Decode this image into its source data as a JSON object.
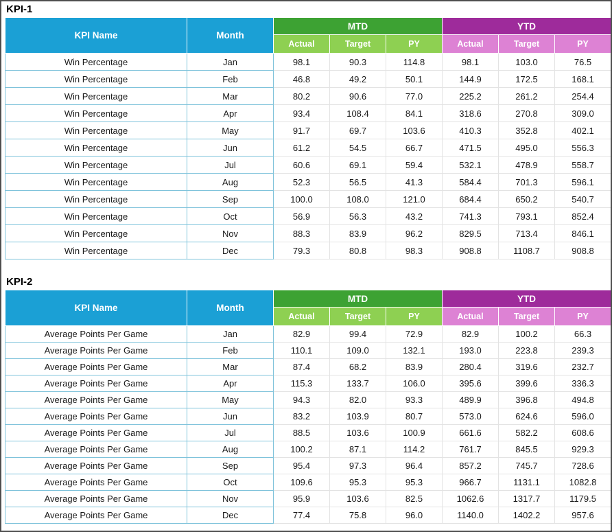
{
  "colors": {
    "header_cyan": "#1ba0d5",
    "mtd_dark_green": "#3da233",
    "mtd_light_green": "#8ed052",
    "ytd_dark_magenta": "#9e2b9b",
    "ytd_light_magenta": "#dd82d4",
    "name_month_cell_border": "#7fc3db",
    "value_cell_border": "#e3e3e3",
    "frame_border": "#4e4e4e"
  },
  "chart_data": [
    {
      "type": "table",
      "title": "KPI-1",
      "kpi_name": "Win Percentage",
      "header": {
        "kpi_name": "KPI Name",
        "month": "Month",
        "groups": [
          {
            "label": "MTD",
            "subs": [
              "Actual",
              "Target",
              "PY"
            ]
          },
          {
            "label": "YTD",
            "subs": [
              "Actual",
              "Target",
              "PY"
            ]
          }
        ]
      },
      "rows": [
        {
          "month": "Jan",
          "values": [
            "98.1",
            "90.3",
            "114.8",
            "98.1",
            "103.0",
            "76.5"
          ]
        },
        {
          "month": "Feb",
          "values": [
            "46.8",
            "49.2",
            "50.1",
            "144.9",
            "172.5",
            "168.1"
          ]
        },
        {
          "month": "Mar",
          "values": [
            "80.2",
            "90.6",
            "77.0",
            "225.2",
            "261.2",
            "254.4"
          ]
        },
        {
          "month": "Apr",
          "values": [
            "93.4",
            "108.4",
            "84.1",
            "318.6",
            "270.8",
            "309.0"
          ]
        },
        {
          "month": "May",
          "values": [
            "91.7",
            "69.7",
            "103.6",
            "410.3",
            "352.8",
            "402.1"
          ]
        },
        {
          "month": "Jun",
          "values": [
            "61.2",
            "54.5",
            "66.7",
            "471.5",
            "495.0",
            "556.3"
          ]
        },
        {
          "month": "Jul",
          "values": [
            "60.6",
            "69.1",
            "59.4",
            "532.1",
            "478.9",
            "558.7"
          ]
        },
        {
          "month": "Aug",
          "values": [
            "52.3",
            "56.5",
            "41.3",
            "584.4",
            "701.3",
            "596.1"
          ]
        },
        {
          "month": "Sep",
          "values": [
            "100.0",
            "108.0",
            "121.0",
            "684.4",
            "650.2",
            "540.7"
          ]
        },
        {
          "month": "Oct",
          "values": [
            "56.9",
            "56.3",
            "43.2",
            "741.3",
            "793.1",
            "852.4"
          ]
        },
        {
          "month": "Nov",
          "values": [
            "88.3",
            "83.9",
            "96.2",
            "829.5",
            "713.4",
            "846.1"
          ]
        },
        {
          "month": "Dec",
          "values": [
            "79.3",
            "80.8",
            "98.3",
            "908.8",
            "1108.7",
            "908.8"
          ]
        }
      ]
    },
    {
      "type": "table",
      "title": "KPI-2",
      "kpi_name": "Average Points Per Game",
      "header": {
        "kpi_name": "KPI Name",
        "month": "Month",
        "groups": [
          {
            "label": "MTD",
            "subs": [
              "Actual",
              "Target",
              "PY"
            ]
          },
          {
            "label": "YTD",
            "subs": [
              "Actual",
              "Target",
              "PY"
            ]
          }
        ]
      },
      "rows": [
        {
          "month": "Jan",
          "values": [
            "82.9",
            "99.4",
            "72.9",
            "82.9",
            "100.2",
            "66.3"
          ]
        },
        {
          "month": "Feb",
          "values": [
            "110.1",
            "109.0",
            "132.1",
            "193.0",
            "223.8",
            "239.3"
          ]
        },
        {
          "month": "Mar",
          "values": [
            "87.4",
            "68.2",
            "83.9",
            "280.4",
            "319.6",
            "232.7"
          ]
        },
        {
          "month": "Apr",
          "values": [
            "115.3",
            "133.7",
            "106.0",
            "395.6",
            "399.6",
            "336.3"
          ]
        },
        {
          "month": "May",
          "values": [
            "94.3",
            "82.0",
            "93.3",
            "489.9",
            "396.8",
            "494.8"
          ]
        },
        {
          "month": "Jun",
          "values": [
            "83.2",
            "103.9",
            "80.7",
            "573.0",
            "624.6",
            "596.0"
          ]
        },
        {
          "month": "Jul",
          "values": [
            "88.5",
            "103.6",
            "100.9",
            "661.6",
            "582.2",
            "608.6"
          ]
        },
        {
          "month": "Aug",
          "values": [
            "100.2",
            "87.1",
            "114.2",
            "761.7",
            "845.5",
            "929.3"
          ]
        },
        {
          "month": "Sep",
          "values": [
            "95.4",
            "97.3",
            "96.4",
            "857.2",
            "745.7",
            "728.6"
          ]
        },
        {
          "month": "Oct",
          "values": [
            "109.6",
            "95.3",
            "95.3",
            "966.7",
            "1131.1",
            "1082.8"
          ]
        },
        {
          "month": "Nov",
          "values": [
            "95.9",
            "103.6",
            "82.5",
            "1062.6",
            "1317.7",
            "1179.5"
          ]
        },
        {
          "month": "Dec",
          "values": [
            "77.4",
            "75.8",
            "96.0",
            "1140.0",
            "1402.2",
            "957.6"
          ]
        }
      ]
    }
  ]
}
